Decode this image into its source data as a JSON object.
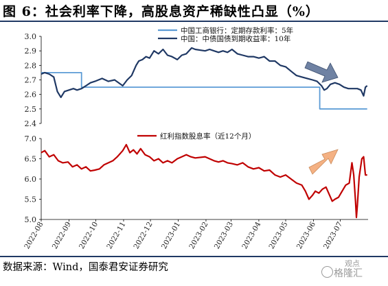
{
  "figure": {
    "title": "图 6：社会利率下降，高股息资产稀缺性凸显（%）",
    "source": "数据来源：Wind，国泰君安证券研究",
    "watermark": "格隆汇",
    "watermark_small": "观点"
  },
  "colors": {
    "icbc_deposit": "#5b9bd5",
    "cdb_bond": "#1f3864",
    "dividend_yield": "#c00000",
    "rule": "#1f3864",
    "arrow_down": "#6f82a3",
    "arrow_up": "#f4b183"
  },
  "chart_data": [
    {
      "type": "line",
      "ylim": [
        2.4,
        3.0
      ],
      "yticks": [
        "3.0",
        "2.9",
        "2.8",
        "2.7",
        "2.6",
        "2.5",
        "2.4"
      ],
      "x_range": [
        "2022-08",
        "2023-08"
      ],
      "legend_position": "top-center",
      "series": [
        {
          "name": "中国工商银行：定期存款利率：5年",
          "color": "#5b9bd5",
          "step": true,
          "points": [
            [
              "2022-08-01",
              2.75
            ],
            [
              "2022-09-15",
              2.75
            ],
            [
              "2022-09-15",
              2.65
            ],
            [
              "2023-06-08",
              2.65
            ],
            [
              "2023-06-08",
              2.5
            ],
            [
              "2023-07-31",
              2.5
            ]
          ]
        },
        {
          "name": "中国：中债国债到期收益率：10年",
          "color": "#1f3864",
          "points": [
            [
              "2022-08-01",
              2.74
            ],
            [
              "2022-08-05",
              2.75
            ],
            [
              "2022-08-10",
              2.74
            ],
            [
              "2022-08-15",
              2.72
            ],
            [
              "2022-08-19",
              2.62
            ],
            [
              "2022-08-23",
              2.58
            ],
            [
              "2022-08-27",
              2.62
            ],
            [
              "2022-09-01",
              2.63
            ],
            [
              "2022-09-06",
              2.64
            ],
            [
              "2022-09-10",
              2.63
            ],
            [
              "2022-09-15",
              2.64
            ],
            [
              "2022-09-20",
              2.66
            ],
            [
              "2022-09-25",
              2.68
            ],
            [
              "2022-09-30",
              2.69
            ],
            [
              "2022-10-08",
              2.71
            ],
            [
              "2022-10-15",
              2.69
            ],
            [
              "2022-10-22",
              2.7
            ],
            [
              "2022-10-31",
              2.66
            ],
            [
              "2022-11-05",
              2.7
            ],
            [
              "2022-11-10",
              2.73
            ],
            [
              "2022-11-15",
              2.8
            ],
            [
              "2022-11-18",
              2.83
            ],
            [
              "2022-11-22",
              2.84
            ],
            [
              "2022-11-26",
              2.86
            ],
            [
              "2022-11-30",
              2.85
            ],
            [
              "2022-12-05",
              2.9
            ],
            [
              "2022-12-10",
              2.88
            ],
            [
              "2022-12-15",
              2.91
            ],
            [
              "2022-12-20",
              2.87
            ],
            [
              "2022-12-25",
              2.86
            ],
            [
              "2022-12-31",
              2.84
            ],
            [
              "2023-01-05",
              2.87
            ],
            [
              "2023-01-10",
              2.88
            ],
            [
              "2023-01-16",
              2.92
            ],
            [
              "2023-01-20",
              2.91
            ],
            [
              "2023-01-31",
              2.9
            ],
            [
              "2023-02-05",
              2.91
            ],
            [
              "2023-02-10",
              2.9
            ],
            [
              "2023-02-15",
              2.89
            ],
            [
              "2023-02-20",
              2.9
            ],
            [
              "2023-02-25",
              2.89
            ],
            [
              "2023-03-02",
              2.91
            ],
            [
              "2023-03-08",
              2.88
            ],
            [
              "2023-03-14",
              2.87
            ],
            [
              "2023-03-20",
              2.86
            ],
            [
              "2023-03-26",
              2.86
            ],
            [
              "2023-04-01",
              2.85
            ],
            [
              "2023-04-07",
              2.86
            ],
            [
              "2023-04-13",
              2.83
            ],
            [
              "2023-04-19",
              2.83
            ],
            [
              "2023-04-25",
              2.8
            ],
            [
              "2023-05-01",
              2.79
            ],
            [
              "2023-05-07",
              2.76
            ],
            [
              "2023-05-13",
              2.73
            ],
            [
              "2023-05-19",
              2.72
            ],
            [
              "2023-05-25",
              2.71
            ],
            [
              "2023-05-31",
              2.7
            ],
            [
              "2023-06-05",
              2.69
            ],
            [
              "2023-06-10",
              2.66
            ],
            [
              "2023-06-13",
              2.63
            ],
            [
              "2023-06-16",
              2.64
            ],
            [
              "2023-06-20",
              2.67
            ],
            [
              "2023-06-25",
              2.68
            ],
            [
              "2023-06-30",
              2.67
            ],
            [
              "2023-07-05",
              2.65
            ],
            [
              "2023-07-10",
              2.64
            ],
            [
              "2023-07-15",
              2.64
            ],
            [
              "2023-07-20",
              2.64
            ],
            [
              "2023-07-24",
              2.63
            ],
            [
              "2023-07-27",
              2.59
            ],
            [
              "2023-07-29",
              2.65
            ],
            [
              "2023-07-31",
              2.66
            ]
          ]
        }
      ]
    },
    {
      "type": "line",
      "ylim": [
        5.0,
        7.0
      ],
      "yticks": [
        "7.0",
        "6.5",
        "6.0",
        "5.5",
        "5.0"
      ],
      "x_range": [
        "2022-08",
        "2023-08"
      ],
      "xticks": [
        "2022-08",
        "2022-09",
        "2022-10",
        "2022-11",
        "2022-12",
        "2023-01",
        "2023-02",
        "2023-03",
        "2023-04",
        "2023-05",
        "2023-06",
        "2023-07"
      ],
      "legend_position": "top-center",
      "series": [
        {
          "name": "红利指数股息率（近12个月）",
          "color": "#c00000",
          "points": [
            [
              "2022-08-01",
              6.65
            ],
            [
              "2022-08-05",
              6.7
            ],
            [
              "2022-08-10",
              6.55
            ],
            [
              "2022-08-15",
              6.6
            ],
            [
              "2022-08-20",
              6.45
            ],
            [
              "2022-08-25",
              6.4
            ],
            [
              "2022-08-31",
              6.42
            ],
            [
              "2022-09-05",
              6.3
            ],
            [
              "2022-09-10",
              6.35
            ],
            [
              "2022-09-15",
              6.25
            ],
            [
              "2022-09-20",
              6.3
            ],
            [
              "2022-09-25",
              6.2
            ],
            [
              "2022-09-30",
              6.22
            ],
            [
              "2022-10-05",
              6.25
            ],
            [
              "2022-10-10",
              6.35
            ],
            [
              "2022-10-15",
              6.4
            ],
            [
              "2022-10-20",
              6.45
            ],
            [
              "2022-10-25",
              6.55
            ],
            [
              "2022-10-31",
              6.7
            ],
            [
              "2022-11-04",
              6.85
            ],
            [
              "2022-11-08",
              6.65
            ],
            [
              "2022-11-12",
              6.72
            ],
            [
              "2022-11-16",
              6.62
            ],
            [
              "2022-11-20",
              6.75
            ],
            [
              "2022-11-25",
              6.6
            ],
            [
              "2022-11-30",
              6.55
            ],
            [
              "2022-12-05",
              6.45
            ],
            [
              "2022-12-10",
              6.5
            ],
            [
              "2022-12-15",
              6.4
            ],
            [
              "2022-12-20",
              6.45
            ],
            [
              "2022-12-25",
              6.4
            ],
            [
              "2022-12-31",
              6.5
            ],
            [
              "2023-01-05",
              6.55
            ],
            [
              "2023-01-10",
              6.6
            ],
            [
              "2023-01-15",
              6.55
            ],
            [
              "2023-01-20",
              6.52
            ],
            [
              "2023-01-31",
              6.55
            ],
            [
              "2023-02-05",
              6.5
            ],
            [
              "2023-02-10",
              6.45
            ],
            [
              "2023-02-15",
              6.42
            ],
            [
              "2023-02-20",
              6.45
            ],
            [
              "2023-02-25",
              6.4
            ],
            [
              "2023-03-02",
              6.38
            ],
            [
              "2023-03-08",
              6.35
            ],
            [
              "2023-03-14",
              6.4
            ],
            [
              "2023-03-20",
              6.3
            ],
            [
              "2023-03-26",
              6.25
            ],
            [
              "2023-04-01",
              6.28
            ],
            [
              "2023-04-07",
              6.2
            ],
            [
              "2023-04-13",
              6.22
            ],
            [
              "2023-04-19",
              6.1
            ],
            [
              "2023-04-25",
              6.05
            ],
            [
              "2023-05-01",
              6.1
            ],
            [
              "2023-05-07",
              6.0
            ],
            [
              "2023-05-13",
              5.9
            ],
            [
              "2023-05-19",
              5.85
            ],
            [
              "2023-05-23",
              5.7
            ],
            [
              "2023-05-27",
              5.5
            ],
            [
              "2023-05-31",
              5.6
            ],
            [
              "2023-06-03",
              5.7
            ],
            [
              "2023-06-07",
              5.65
            ],
            [
              "2023-06-11",
              5.75
            ],
            [
              "2023-06-15",
              5.8
            ],
            [
              "2023-06-19",
              5.6
            ],
            [
              "2023-06-22",
              5.45
            ],
            [
              "2023-06-25",
              5.5
            ],
            [
              "2023-06-29",
              5.55
            ],
            [
              "2023-07-03",
              5.7
            ],
            [
              "2023-07-07",
              5.85
            ],
            [
              "2023-07-11",
              5.9
            ],
            [
              "2023-07-14",
              6.4
            ],
            [
              "2023-07-16",
              6.1
            ],
            [
              "2023-07-18",
              5.45
            ],
            [
              "2023-07-19",
              5.05
            ],
            [
              "2023-07-20",
              5.35
            ],
            [
              "2023-07-22",
              6.05
            ],
            [
              "2023-07-25",
              6.5
            ],
            [
              "2023-07-27",
              6.55
            ],
            [
              "2023-07-29",
              6.1
            ],
            [
              "2023-07-31",
              6.1
            ]
          ]
        }
      ]
    }
  ]
}
